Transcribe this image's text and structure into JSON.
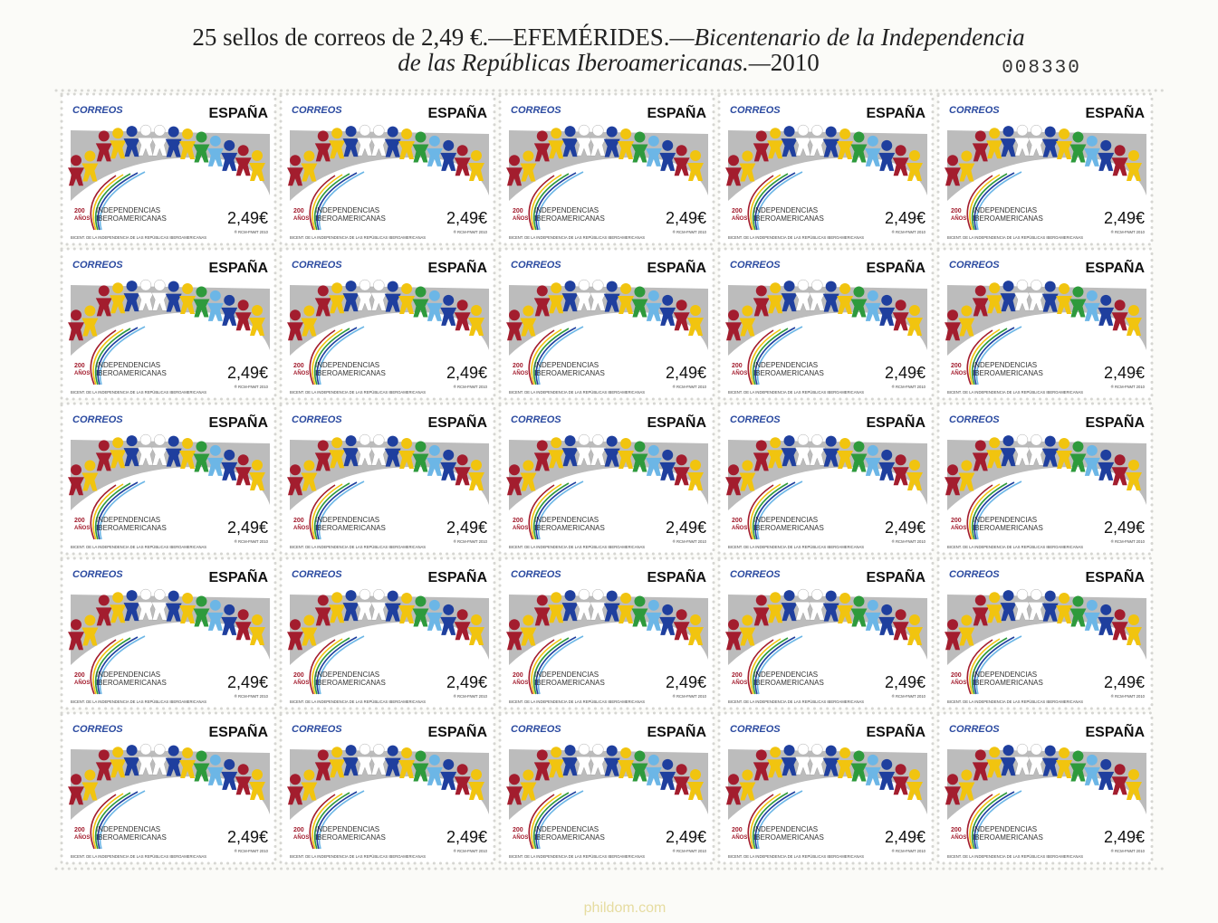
{
  "header": {
    "line1": {
      "roman": "25 sellos de correos de 2,49 €.—EFEMÉRIDES.—",
      "italic": "Bicentenario de la Independencia"
    },
    "line2": {
      "italic": "de las Repúblicas Iberoamericanas.—",
      "roman": "2010"
    },
    "serial": "008330"
  },
  "stamp": {
    "issuer": "CORREOS",
    "country": "ESPAÑA",
    "logo_years": "200",
    "logo_anos": "AÑOS",
    "logo_line1": "INDEPENDENCIAS",
    "logo_line2": "IBEROAMERICANAS",
    "price": "2,49€",
    "caption": "BICENT. DE LA INDEPENDENCIA DE LAS REPÚBLICAS IBEROAMERICANAS",
    "printer": "® RCM-FNMT 2010"
  },
  "watermark": "phildom.com"
}
